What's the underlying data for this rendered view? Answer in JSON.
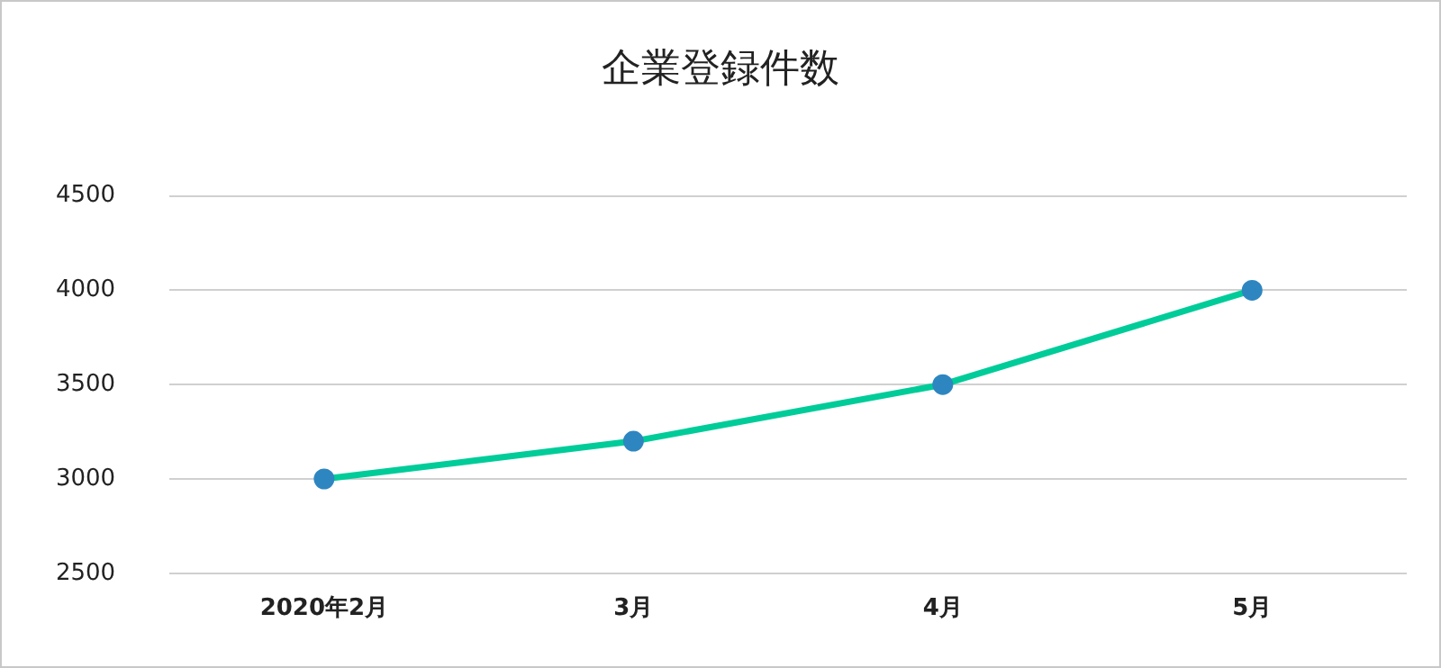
{
  "chart_data": {
    "type": "line",
    "title": "企業登録件数",
    "categories": [
      "2020年2月",
      "3月",
      "4月",
      "5月"
    ],
    "series": [
      {
        "color": "#00cc99",
        "colors": [
          "#2e86c1",
          "#2e86c1",
          "#2e86c1",
          "#2e86c1"
        ],
        "values": [
          3000,
          3200,
          3500,
          4000
        ]
      }
    ],
    "ylim": [
      2500,
      4500
    ],
    "yticks": [
      2500,
      3000,
      3500,
      4000,
      4500
    ],
    "grid": "y",
    "legend": false,
    "marker": "circle",
    "line_style": "solid"
  }
}
